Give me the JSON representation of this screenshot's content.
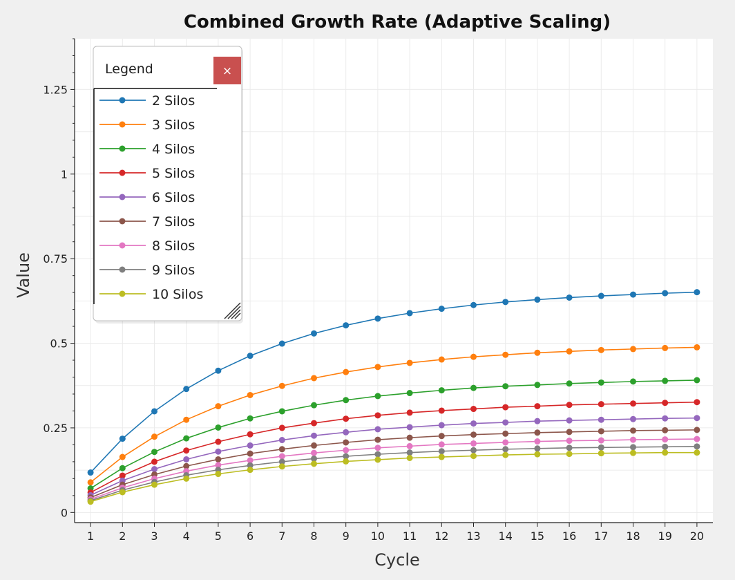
{
  "chart_data": {
    "type": "line",
    "title": "Combined Growth Rate (Adaptive Scaling)",
    "xlabel": "Cycle",
    "ylabel": "Value",
    "x": [
      1,
      2,
      3,
      4,
      5,
      6,
      7,
      8,
      9,
      10,
      11,
      12,
      13,
      14,
      15,
      16,
      17,
      18,
      19,
      20
    ],
    "ylim": [
      0,
      1.4
    ],
    "yticks": [
      0,
      0.25,
      0.5,
      0.75,
      1,
      1.25
    ],
    "ytick_labels": [
      "0",
      "0.25",
      "0.5",
      "0.75",
      "1",
      "1.25"
    ],
    "grid": true,
    "legend": {
      "title": "Legend",
      "close_label": "×",
      "placement": "top-left"
    },
    "series": [
      {
        "name": "2 Silos",
        "color": "#1f77b4",
        "values": [
          0.118,
          0.218,
          0.299,
          0.365,
          0.419,
          0.463,
          0.499,
          0.529,
          0.553,
          0.573,
          0.589,
          0.602,
          0.613,
          0.622,
          0.629,
          0.635,
          0.64,
          0.644,
          0.648,
          0.651
        ]
      },
      {
        "name": "3 Silos",
        "color": "#ff7f0e",
        "values": [
          0.089,
          0.164,
          0.224,
          0.274,
          0.314,
          0.347,
          0.374,
          0.397,
          0.415,
          0.43,
          0.442,
          0.452,
          0.46,
          0.466,
          0.472,
          0.476,
          0.48,
          0.483,
          0.486,
          0.488
        ]
      },
      {
        "name": "4 Silos",
        "color": "#2ca02c",
        "values": [
          0.071,
          0.131,
          0.179,
          0.219,
          0.251,
          0.278,
          0.299,
          0.317,
          0.332,
          0.344,
          0.353,
          0.361,
          0.368,
          0.373,
          0.377,
          0.381,
          0.384,
          0.387,
          0.389,
          0.391
        ]
      },
      {
        "name": "5 Silos",
        "color": "#d62728",
        "values": [
          0.059,
          0.109,
          0.15,
          0.183,
          0.209,
          0.231,
          0.25,
          0.264,
          0.277,
          0.287,
          0.295,
          0.301,
          0.306,
          0.311,
          0.314,
          0.318,
          0.32,
          0.322,
          0.324,
          0.326
        ]
      },
      {
        "name": "6 Silos",
        "color": "#9467bd",
        "values": [
          0.051,
          0.094,
          0.128,
          0.157,
          0.18,
          0.198,
          0.214,
          0.227,
          0.237,
          0.246,
          0.252,
          0.258,
          0.263,
          0.266,
          0.27,
          0.272,
          0.274,
          0.276,
          0.278,
          0.279
        ]
      },
      {
        "name": "7 Silos",
        "color": "#8c564b",
        "values": [
          0.044,
          0.082,
          0.112,
          0.137,
          0.157,
          0.174,
          0.187,
          0.198,
          0.207,
          0.215,
          0.221,
          0.226,
          0.23,
          0.233,
          0.236,
          0.238,
          0.24,
          0.242,
          0.243,
          0.244
        ]
      },
      {
        "name": "8 Silos",
        "color": "#e377c2",
        "values": [
          0.039,
          0.073,
          0.1,
          0.122,
          0.14,
          0.154,
          0.166,
          0.176,
          0.184,
          0.191,
          0.196,
          0.201,
          0.204,
          0.207,
          0.21,
          0.212,
          0.213,
          0.215,
          0.216,
          0.217
        ]
      },
      {
        "name": "9 Silos",
        "color": "#7f7f7f",
        "values": [
          0.035,
          0.066,
          0.09,
          0.11,
          0.126,
          0.139,
          0.15,
          0.159,
          0.166,
          0.172,
          0.177,
          0.181,
          0.184,
          0.187,
          0.189,
          0.191,
          0.192,
          0.193,
          0.194,
          0.195
        ]
      },
      {
        "name": "10 Silos",
        "color": "#bcbd22",
        "values": [
          0.032,
          0.06,
          0.082,
          0.1,
          0.114,
          0.126,
          0.136,
          0.144,
          0.151,
          0.156,
          0.161,
          0.164,
          0.167,
          0.17,
          0.172,
          0.173,
          0.175,
          0.176,
          0.177,
          0.177
        ]
      }
    ]
  }
}
